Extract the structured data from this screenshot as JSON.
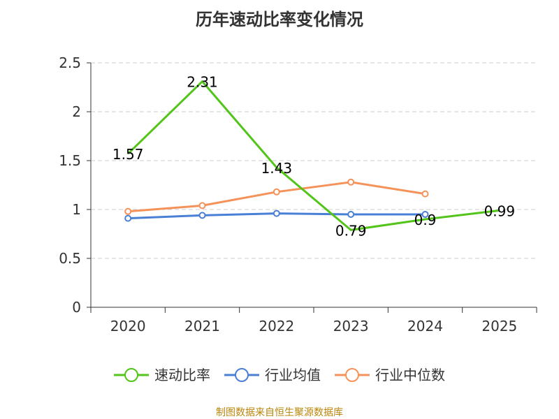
{
  "chart_data": {
    "type": "line",
    "title": "历年速动比率变化情况",
    "categories": [
      "2020",
      "2021",
      "2022",
      "2023",
      "2024",
      "2025"
    ],
    "y_ticks": [
      "0",
      "0.5",
      "1",
      "1.5",
      "2",
      "2.5"
    ],
    "ylim": [
      0,
      2.5
    ],
    "grid": true,
    "legend_position": "bottom",
    "series": [
      {
        "name": "速动比率",
        "color": "#52c41a",
        "values": [
          1.57,
          2.31,
          1.43,
          0.79,
          0.9,
          0.99
        ],
        "data_labels": [
          "1.57",
          "2.31",
          "1.43",
          "0.79",
          "0.9",
          "0.99"
        ],
        "markers": false
      },
      {
        "name": "行业均值",
        "color": "#4a7fd6",
        "values": [
          0.91,
          0.94,
          0.96,
          0.95,
          0.95,
          null
        ],
        "markers": true
      },
      {
        "name": "行业中位数",
        "color": "#f5925a",
        "values": [
          0.98,
          1.04,
          1.18,
          1.28,
          1.16,
          null
        ],
        "markers": true
      }
    ],
    "source_note": "制图数据来自恒生聚源数据库"
  }
}
